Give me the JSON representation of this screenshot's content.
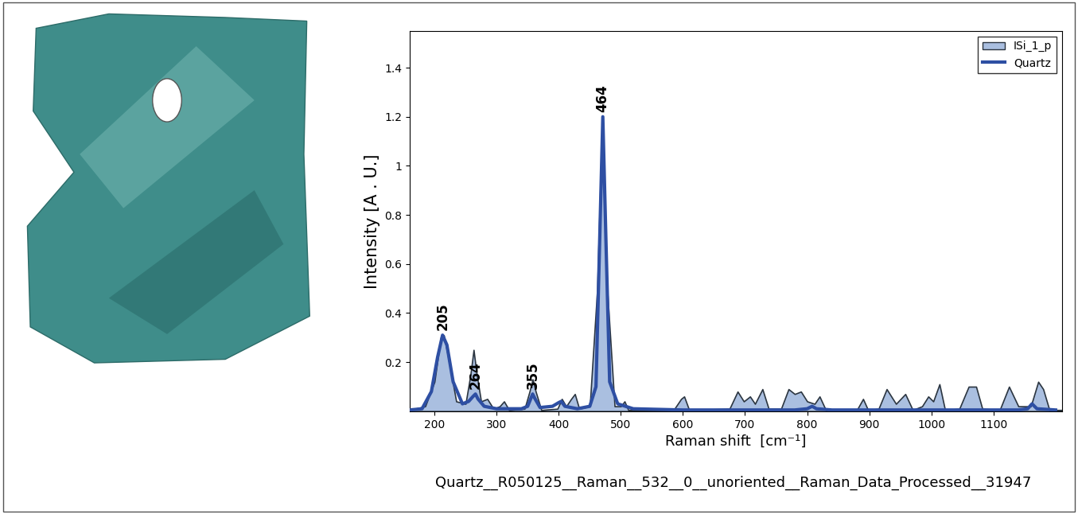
{
  "chart_data": {
    "type": "line",
    "x_label": "Raman shift  [cm⁻¹]",
    "y_label": "Intensity [A . U.]",
    "caption": "Quartz__R050125__Raman__532__0__unoriented__Raman_Data_Processed__31947",
    "xlim": [
      160,
      1210
    ],
    "xticks": [
      200,
      300,
      400,
      500,
      600,
      700,
      800,
      900,
      1000,
      1100
    ],
    "ylim": [
      0,
      1.55
    ],
    "yticks": [
      0.2,
      0.4,
      0.6,
      0.8,
      1,
      1.2,
      1.4
    ],
    "grid": false,
    "legend": "upper right",
    "series": [
      {
        "name": "ISi_1_p",
        "type": "area",
        "color": "#aabfe0",
        "x": [
          160,
          185,
          200,
          210,
          215,
          222,
          235,
          250,
          258,
          263,
          268,
          275,
          285,
          295,
          305,
          312,
          320,
          345,
          353,
          358,
          363,
          372,
          398,
          405,
          412,
          420,
          426,
          433,
          450,
          462,
          470,
          478,
          490,
          500,
          506,
          512,
          585,
          597,
          602,
          610,
          675,
          688,
          698,
          708,
          716,
          728,
          738,
          758,
          770,
          780,
          790,
          800,
          812,
          820,
          830,
          880,
          890,
          898,
          915,
          928,
          943,
          958,
          970,
          985,
          995,
          1003,
          1013,
          1022,
          1045,
          1060,
          1072,
          1082,
          1110,
          1125,
          1140,
          1160,
          1172,
          1180,
          1190,
          1210
        ],
        "values": [
          0.005,
          0.02,
          0.12,
          0.3,
          0.31,
          0.22,
          0.04,
          0.03,
          0.15,
          0.25,
          0.15,
          0.04,
          0.05,
          0.01,
          0.02,
          0.04,
          0.005,
          0.01,
          0.08,
          0.13,
          0.08,
          0.005,
          0.01,
          0.05,
          0.02,
          0.05,
          0.07,
          0.01,
          0.02,
          0.5,
          1.19,
          0.5,
          0.02,
          0.02,
          0.04,
          0.005,
          0.005,
          0.05,
          0.06,
          0.005,
          0.01,
          0.08,
          0.04,
          0.06,
          0.03,
          0.09,
          0.01,
          0.01,
          0.09,
          0.07,
          0.08,
          0.04,
          0.03,
          0.06,
          0.005,
          0.005,
          0.05,
          0.005,
          0.01,
          0.09,
          0.03,
          0.07,
          0.005,
          0.02,
          0.06,
          0.04,
          0.11,
          0.005,
          0.01,
          0.1,
          0.1,
          0.01,
          0.005,
          0.1,
          0.02,
          0.02,
          0.12,
          0.09,
          0.005,
          0.005
        ]
      },
      {
        "name": "Quartz",
        "type": "line",
        "color": "#2e4fa3",
        "x": [
          160,
          180,
          195,
          205,
          213,
          220,
          230,
          245,
          255,
          262,
          266,
          270,
          280,
          300,
          340,
          350,
          358,
          362,
          370,
          390,
          400,
          404,
          410,
          430,
          450,
          460,
          466,
          471,
          476,
          482,
          495,
          520,
          600,
          780,
          800,
          808,
          815,
          840,
          1000,
          1140,
          1155,
          1162,
          1170,
          1200
        ],
        "values": [
          0.005,
          0.01,
          0.08,
          0.22,
          0.31,
          0.27,
          0.12,
          0.03,
          0.04,
          0.06,
          0.07,
          0.05,
          0.02,
          0.01,
          0.01,
          0.02,
          0.07,
          0.05,
          0.015,
          0.02,
          0.035,
          0.04,
          0.02,
          0.01,
          0.02,
          0.1,
          0.7,
          1.2,
          0.7,
          0.12,
          0.03,
          0.01,
          0.005,
          0.005,
          0.01,
          0.02,
          0.01,
          0.005,
          0.005,
          0.005,
          0.01,
          0.03,
          0.01,
          0.005
        ]
      }
    ],
    "peak_labels": [
      {
        "label": "205",
        "x": 213,
        "y": 0.31
      },
      {
        "label": "264",
        "x": 266,
        "y": 0.07
      },
      {
        "label": "355",
        "x": 358,
        "y": 0.07
      },
      {
        "label": "464",
        "x": 471,
        "y": 1.2
      }
    ]
  }
}
